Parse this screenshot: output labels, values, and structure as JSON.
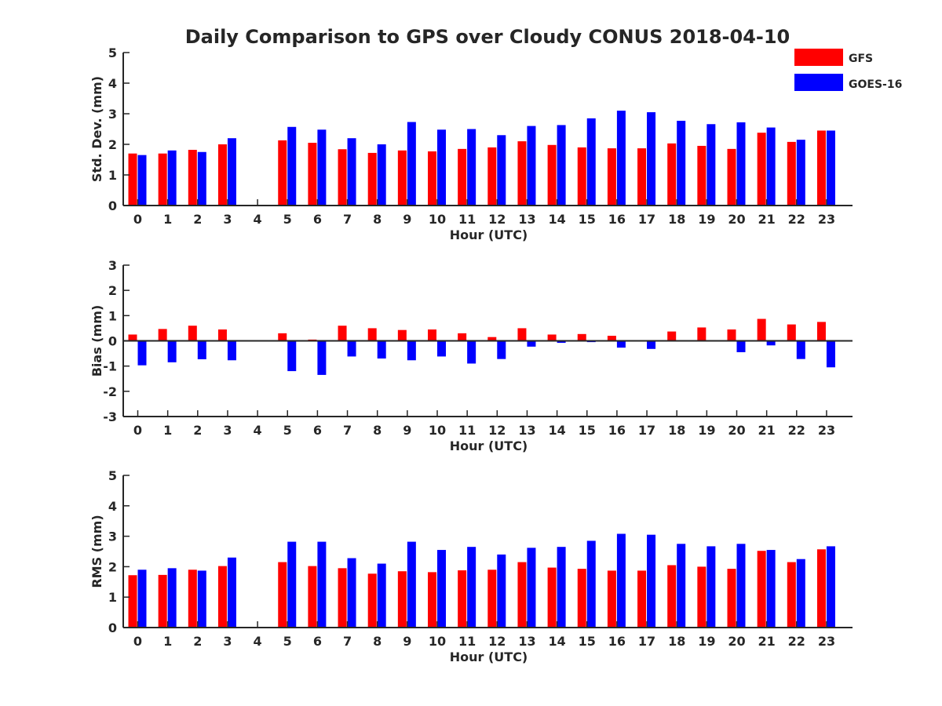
{
  "title": "Daily Comparison to GPS over Cloudy CONUS 2018-04-10",
  "colors": {
    "GFS": "#ff0000",
    "GOES-16": "#0000ff",
    "axis": "#262626"
  },
  "legend": {
    "position": "top-right",
    "entries": [
      "GFS",
      "GOES-16"
    ]
  },
  "chart_data": [
    {
      "type": "bar",
      "xlabel": "Hour (UTC)",
      "ylabel": "Std. Dev. (mm)",
      "ylim": [
        0,
        5
      ],
      "yticks": [
        0,
        1,
        2,
        3,
        4,
        5
      ],
      "grid": false,
      "categories": [
        "0",
        "1",
        "2",
        "3",
        "4",
        "5",
        "6",
        "7",
        "8",
        "9",
        "10",
        "11",
        "12",
        "13",
        "14",
        "15",
        "16",
        "17",
        "18",
        "19",
        "20",
        "21",
        "22",
        "23"
      ],
      "series": [
        {
          "name": "GFS",
          "values": [
            1.7,
            1.7,
            1.82,
            2.0,
            null,
            2.13,
            2.05,
            1.84,
            1.72,
            1.8,
            1.77,
            1.85,
            1.9,
            2.1,
            1.98,
            1.9,
            1.87,
            1.87,
            2.03,
            1.95,
            1.85,
            2.38,
            2.08,
            2.45
          ]
        },
        {
          "name": "GOES-16",
          "values": [
            1.65,
            1.8,
            1.75,
            2.2,
            null,
            2.57,
            2.48,
            2.2,
            2.0,
            2.73,
            2.48,
            2.5,
            2.3,
            2.6,
            2.63,
            2.85,
            3.1,
            3.05,
            2.77,
            2.66,
            2.72,
            2.55,
            2.15,
            2.45
          ]
        }
      ]
    },
    {
      "type": "bar",
      "xlabel": "Hour (UTC)",
      "ylabel": "Bias (mm)",
      "ylim": [
        -3,
        3
      ],
      "yticks": [
        -3,
        -2,
        -1,
        0,
        1,
        2,
        3
      ],
      "grid": false,
      "categories": [
        "0",
        "1",
        "2",
        "3",
        "4",
        "5",
        "6",
        "7",
        "8",
        "9",
        "10",
        "11",
        "12",
        "13",
        "14",
        "15",
        "16",
        "17",
        "18",
        "19",
        "20",
        "21",
        "22",
        "23"
      ],
      "series": [
        {
          "name": "GFS",
          "values": [
            0.25,
            0.47,
            0.6,
            0.45,
            null,
            0.3,
            0.05,
            0.6,
            0.5,
            0.43,
            0.45,
            0.3,
            0.15,
            0.5,
            0.25,
            0.27,
            0.2,
            0.0,
            0.37,
            0.53,
            0.45,
            0.87,
            0.65,
            0.75
          ]
        },
        {
          "name": "GOES-16",
          "values": [
            -0.97,
            -0.85,
            -0.73,
            -0.77,
            null,
            -1.2,
            -1.35,
            -0.62,
            -0.7,
            -0.77,
            -0.62,
            -0.9,
            -0.72,
            -0.23,
            -0.08,
            -0.05,
            -0.27,
            -0.32,
            -0.03,
            0.0,
            -0.45,
            -0.18,
            -0.72,
            -1.05
          ]
        }
      ]
    },
    {
      "type": "bar",
      "xlabel": "Hour (UTC)",
      "ylabel": "RMS (mm)",
      "ylim": [
        0,
        5
      ],
      "yticks": [
        0,
        1,
        2,
        3,
        4,
        5
      ],
      "grid": false,
      "categories": [
        "0",
        "1",
        "2",
        "3",
        "4",
        "5",
        "6",
        "7",
        "8",
        "9",
        "10",
        "11",
        "12",
        "13",
        "14",
        "15",
        "16",
        "17",
        "18",
        "19",
        "20",
        "21",
        "22",
        "23"
      ],
      "series": [
        {
          "name": "GFS",
          "values": [
            1.72,
            1.73,
            1.9,
            2.02,
            null,
            2.15,
            2.02,
            1.95,
            1.77,
            1.85,
            1.82,
            1.88,
            1.9,
            2.15,
            1.97,
            1.93,
            1.87,
            1.87,
            2.05,
            2.0,
            1.93,
            2.52,
            2.15,
            2.57
          ]
        },
        {
          "name": "GOES-16",
          "values": [
            1.9,
            1.95,
            1.87,
            2.3,
            null,
            2.82,
            2.82,
            2.28,
            2.1,
            2.82,
            2.55,
            2.65,
            2.4,
            2.62,
            2.65,
            2.85,
            3.08,
            3.05,
            2.75,
            2.67,
            2.75,
            2.55,
            2.25,
            2.67
          ]
        }
      ]
    }
  ]
}
